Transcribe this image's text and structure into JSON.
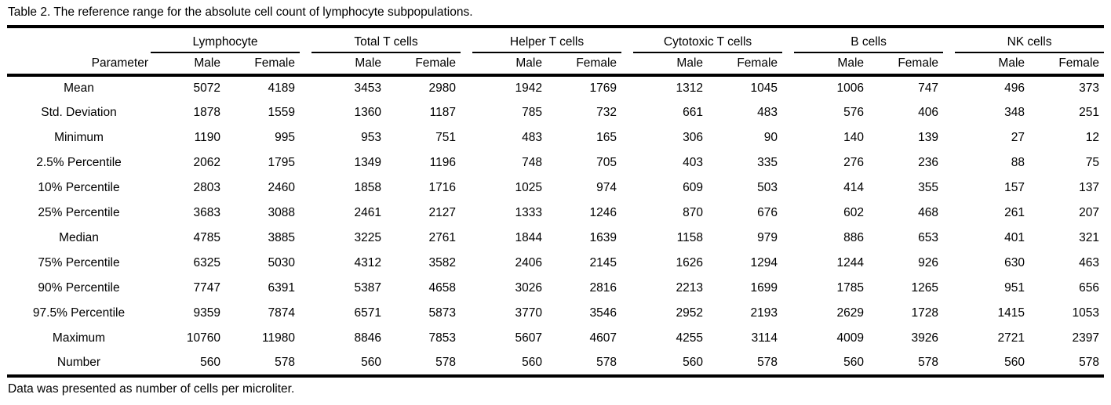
{
  "title": "Table 2. The reference range for the absolute cell count of lymphocyte subpopulations.",
  "footnote": "Data was presented as number of cells per microliter.",
  "colors": {
    "text": "#000000",
    "background": "#ffffff",
    "rule": "#000000"
  },
  "table": {
    "parameter_header": "Parameter",
    "groups": [
      "Lymphocyte",
      "Total T cells",
      "Helper T cells",
      "Cytotoxic T cells",
      "B cells",
      "NK cells"
    ],
    "sub_headers": [
      "Male",
      "Female"
    ],
    "rows": [
      {
        "label": "Mean",
        "values": [
          5072,
          4189,
          3453,
          2980,
          1942,
          1769,
          1312,
          1045,
          1006,
          747,
          496,
          373
        ]
      },
      {
        "label": "Std. Deviation",
        "values": [
          1878,
          1559,
          1360,
          1187,
          785,
          732,
          661,
          483,
          576,
          406,
          348,
          251
        ]
      },
      {
        "label": "Minimum",
        "values": [
          1190,
          995,
          953,
          751,
          483,
          165,
          306,
          90,
          140,
          139,
          27,
          12
        ]
      },
      {
        "label": "2.5% Percentile",
        "values": [
          2062,
          1795,
          1349,
          1196,
          748,
          705,
          403,
          335,
          276,
          236,
          88,
          75
        ]
      },
      {
        "label": "10% Percentile",
        "values": [
          2803,
          2460,
          1858,
          1716,
          1025,
          974,
          609,
          503,
          414,
          355,
          157,
          137
        ]
      },
      {
        "label": "25% Percentile",
        "values": [
          3683,
          3088,
          2461,
          2127,
          1333,
          1246,
          870,
          676,
          602,
          468,
          261,
          207
        ]
      },
      {
        "label": "Median",
        "values": [
          4785,
          3885,
          3225,
          2761,
          1844,
          1639,
          1158,
          979,
          886,
          653,
          401,
          321
        ]
      },
      {
        "label": "75% Percentile",
        "values": [
          6325,
          5030,
          4312,
          3582,
          2406,
          2145,
          1626,
          1294,
          1244,
          926,
          630,
          463
        ]
      },
      {
        "label": "90% Percentile",
        "values": [
          7747,
          6391,
          5387,
          4658,
          3026,
          2816,
          2213,
          1699,
          1785,
          1265,
          951,
          656
        ]
      },
      {
        "label": "97.5% Percentile",
        "values": [
          9359,
          7874,
          6571,
          5873,
          3770,
          3546,
          2952,
          2193,
          2629,
          1728,
          1415,
          1053
        ]
      },
      {
        "label": "Maximum",
        "values": [
          10760,
          11980,
          8846,
          7853,
          5607,
          4607,
          4255,
          3114,
          4009,
          3926,
          2721,
          2397
        ]
      },
      {
        "label": "Number",
        "values": [
          560,
          578,
          560,
          578,
          560,
          578,
          560,
          578,
          560,
          578,
          560,
          578
        ]
      }
    ]
  }
}
